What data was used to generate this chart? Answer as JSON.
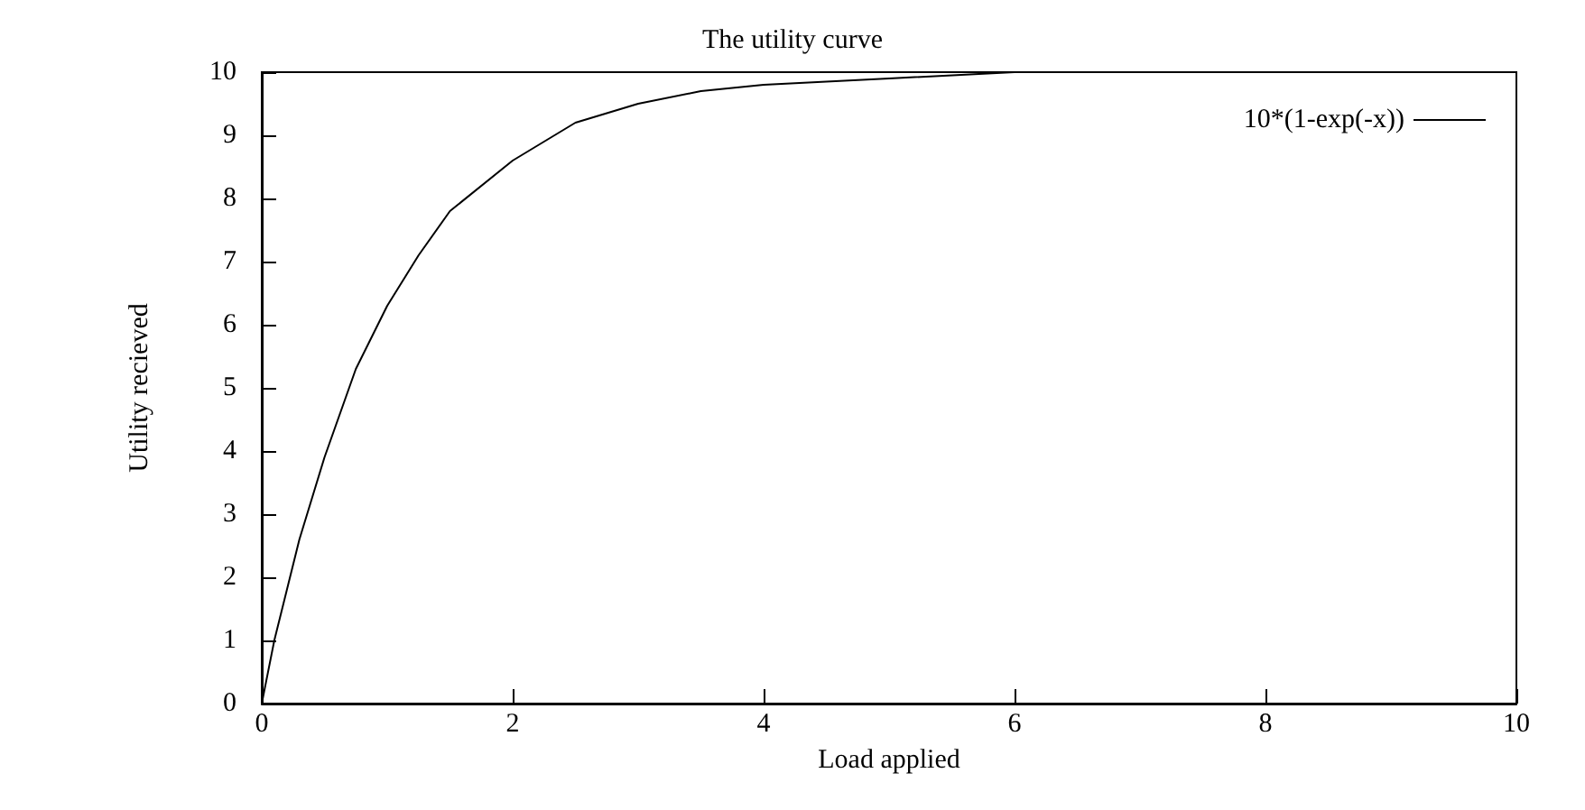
{
  "chart_data": {
    "type": "line",
    "title": "The utility curve",
    "xlabel": "Load applied",
    "ylabel": "Utility recieved",
    "x": [
      0,
      0.1,
      0.2,
      0.3,
      0.5,
      0.75,
      1,
      1.25,
      1.5,
      2,
      2.5,
      3,
      3.5,
      4,
      5,
      6,
      7,
      8,
      10
    ],
    "series": [
      {
        "name": "10*(1-exp(-x))",
        "color": "#000000",
        "values": [
          0,
          1.0,
          1.8,
          2.6,
          3.9,
          5.3,
          6.3,
          7.1,
          7.8,
          8.6,
          9.2,
          9.5,
          9.7,
          9.8,
          9.9,
          10,
          10,
          10,
          10
        ]
      }
    ],
    "xlim": [
      0,
      10
    ],
    "ylim": [
      0,
      10
    ],
    "xticks": [
      0,
      2,
      4,
      6,
      8,
      10
    ],
    "yticks": [
      0,
      1,
      2,
      3,
      4,
      5,
      6,
      7,
      8,
      9,
      10
    ],
    "legend": "top right",
    "grid": false,
    "marker": "none",
    "line_style": "solid"
  }
}
